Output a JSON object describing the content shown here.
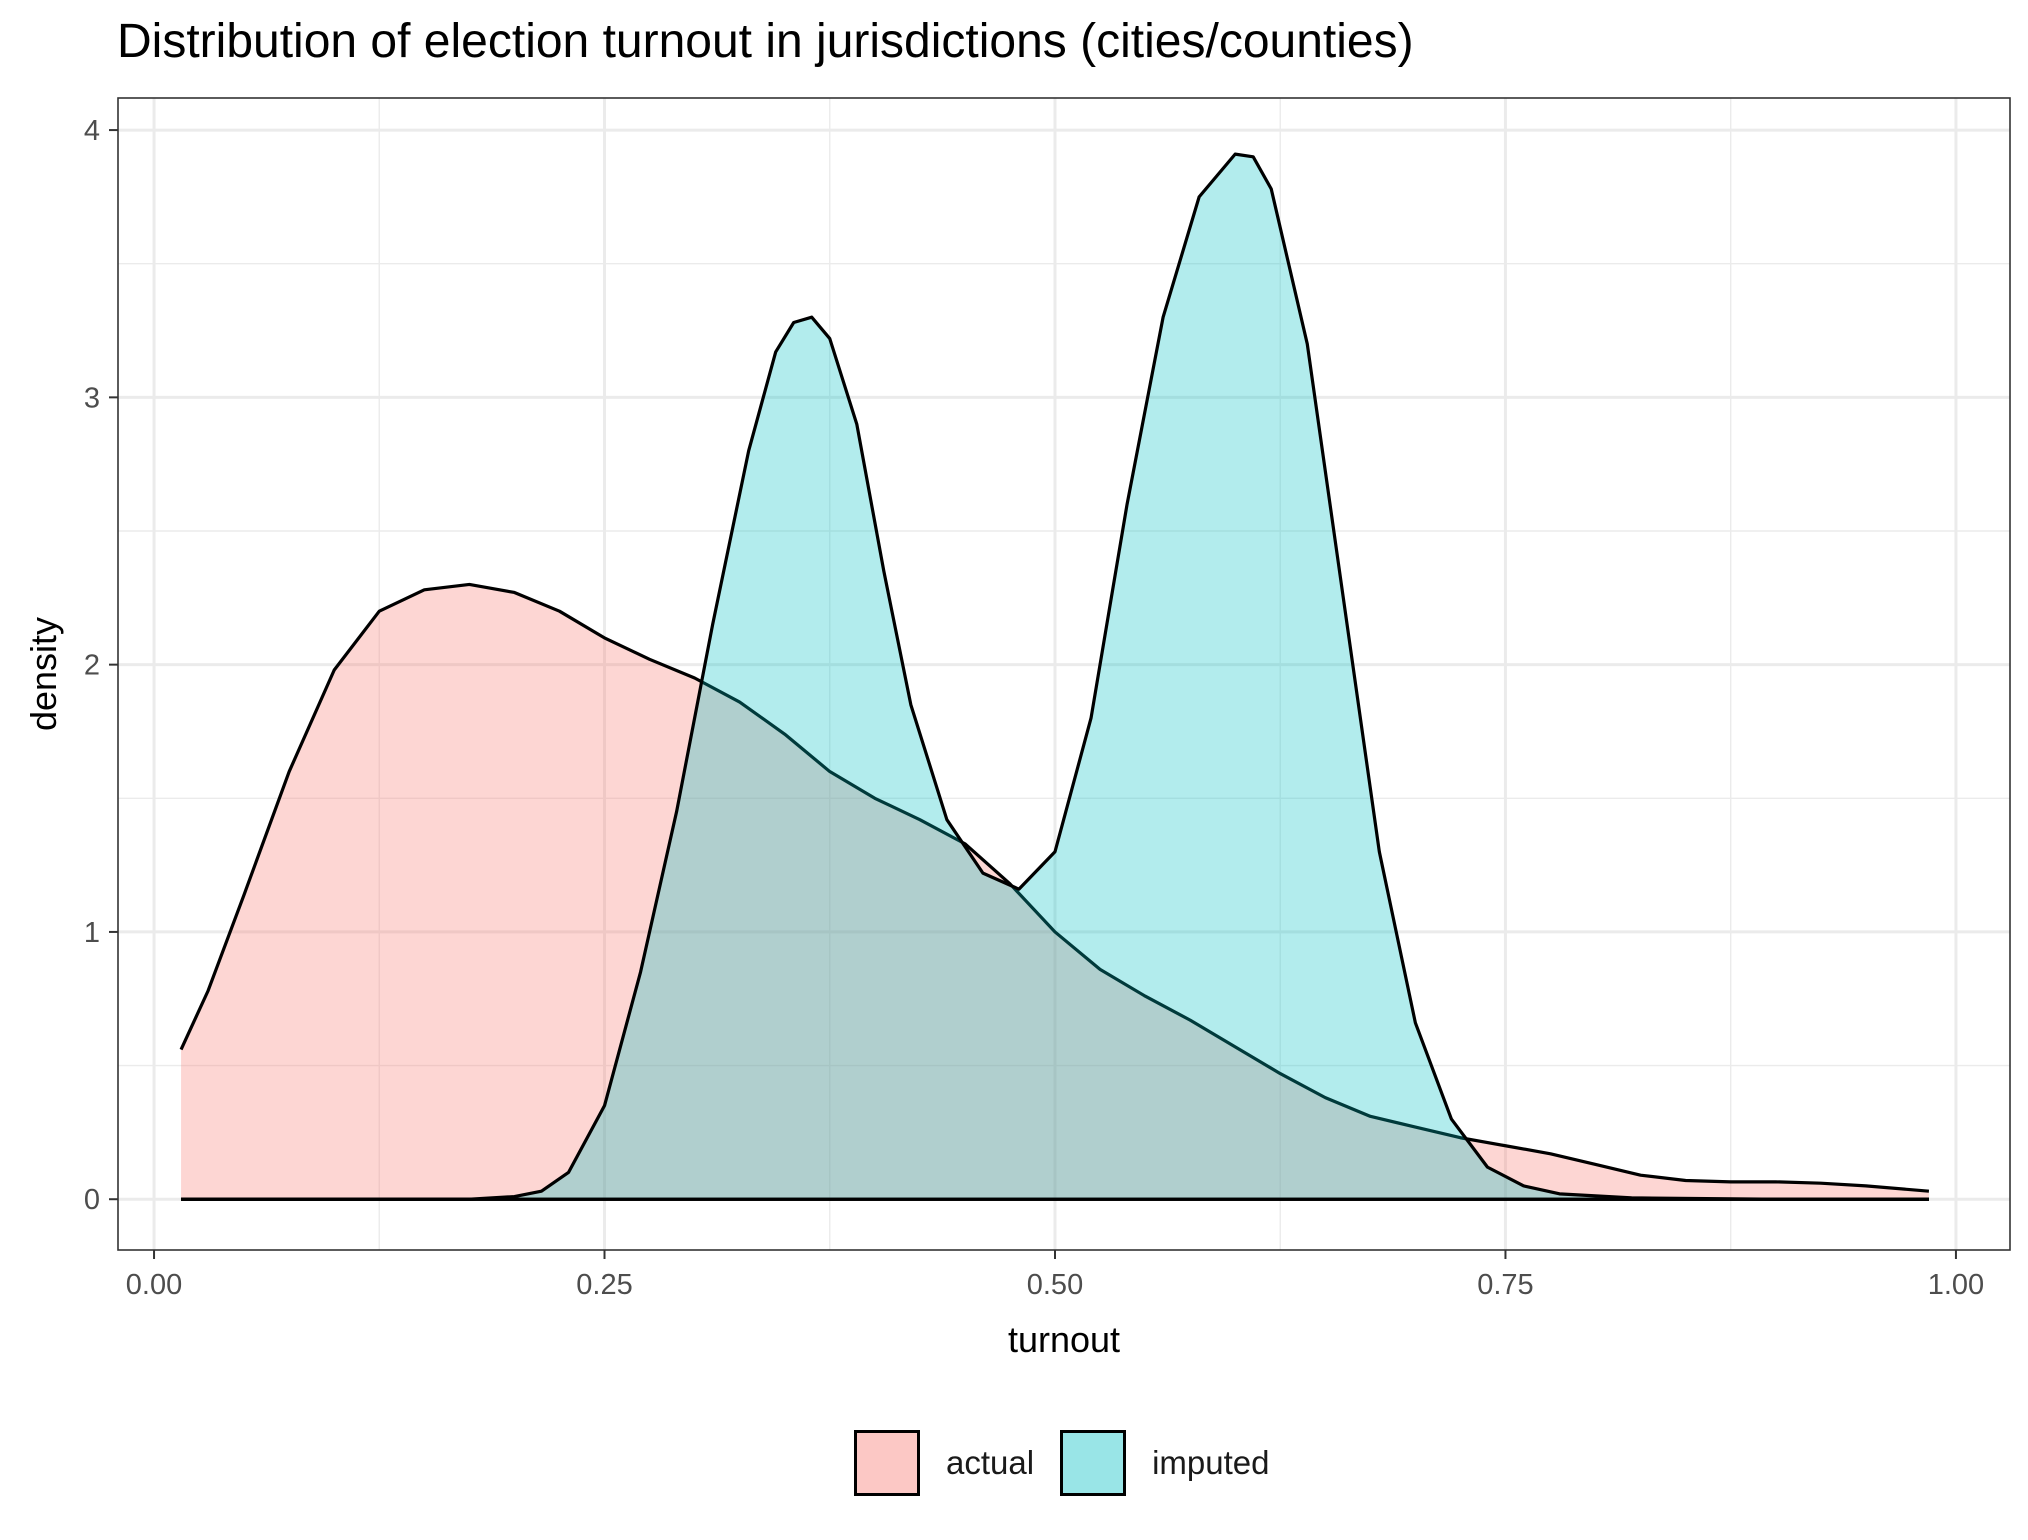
{
  "chart_data": {
    "type": "area",
    "title": "Distribution of election turnout in jurisdictions (cities/counties)",
    "xlabel": "turnout",
    "ylabel": "density",
    "xlim": [
      -0.02,
      1.03
    ],
    "ylim": [
      -0.19,
      4.12
    ],
    "x_ticks": [
      0.0,
      0.25,
      0.5,
      0.75,
      1.0
    ],
    "x_tick_labels": [
      "0.00",
      "0.25",
      "0.50",
      "0.75",
      "1.00"
    ],
    "y_ticks": [
      0,
      1,
      2,
      3,
      4
    ],
    "y_tick_labels": [
      "0",
      "1",
      "2",
      "3",
      "4"
    ],
    "grid": true,
    "legend_position": "bottom",
    "series": [
      {
        "name": "actual",
        "color": "#F8766D",
        "x": [
          0.015,
          0.03,
          0.05,
          0.075,
          0.1,
          0.125,
          0.15,
          0.175,
          0.2,
          0.225,
          0.25,
          0.275,
          0.3,
          0.325,
          0.35,
          0.375,
          0.4,
          0.425,
          0.45,
          0.475,
          0.5,
          0.525,
          0.55,
          0.575,
          0.6,
          0.625,
          0.65,
          0.675,
          0.7,
          0.725,
          0.75,
          0.775,
          0.8,
          0.825,
          0.85,
          0.875,
          0.9,
          0.925,
          0.95,
          0.985
        ],
        "y": [
          0.56,
          0.78,
          1.14,
          1.6,
          1.98,
          2.2,
          2.28,
          2.3,
          2.27,
          2.2,
          2.1,
          2.02,
          1.95,
          1.86,
          1.74,
          1.6,
          1.5,
          1.42,
          1.33,
          1.18,
          1.0,
          0.86,
          0.76,
          0.67,
          0.57,
          0.47,
          0.38,
          0.31,
          0.27,
          0.23,
          0.2,
          0.17,
          0.13,
          0.09,
          0.07,
          0.065,
          0.065,
          0.06,
          0.05,
          0.03
        ]
      },
      {
        "name": "imputed",
        "color": "#00BFC4",
        "x": [
          0.015,
          0.1,
          0.15,
          0.175,
          0.2,
          0.215,
          0.23,
          0.25,
          0.27,
          0.29,
          0.31,
          0.33,
          0.345,
          0.355,
          0.365,
          0.375,
          0.39,
          0.405,
          0.42,
          0.44,
          0.46,
          0.48,
          0.5,
          0.52,
          0.54,
          0.56,
          0.58,
          0.6,
          0.61,
          0.62,
          0.64,
          0.66,
          0.68,
          0.7,
          0.72,
          0.74,
          0.76,
          0.78,
          0.82,
          0.9,
          0.985
        ],
        "y": [
          0.0,
          0.0,
          0.0,
          0.0,
          0.01,
          0.03,
          0.1,
          0.35,
          0.85,
          1.45,
          2.15,
          2.8,
          3.17,
          3.28,
          3.3,
          3.22,
          2.9,
          2.35,
          1.85,
          1.42,
          1.22,
          1.16,
          1.3,
          1.8,
          2.6,
          3.3,
          3.75,
          3.91,
          3.9,
          3.78,
          3.2,
          2.25,
          1.3,
          0.66,
          0.3,
          0.12,
          0.05,
          0.02,
          0.005,
          0.0,
          0.0
        ]
      }
    ]
  }
}
